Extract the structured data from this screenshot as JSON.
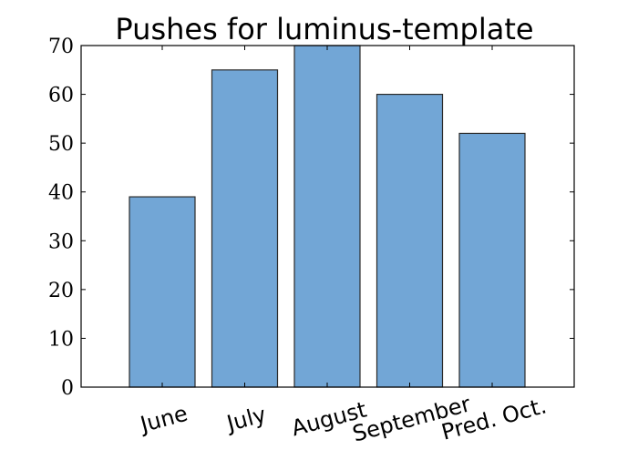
{
  "chart_data": {
    "type": "bar",
    "title": "Pushes for luminus-template",
    "xlabel": "",
    "ylabel": "",
    "categories": [
      "June",
      "July",
      "August",
      "September",
      "Pred. Oct."
    ],
    "values": [
      39,
      65,
      70,
      60,
      52
    ],
    "ylim": [
      0,
      70
    ],
    "yticks": [
      0,
      10,
      20,
      30,
      40,
      50,
      60,
      70
    ],
    "bar_color": "#72a6d6",
    "edge_color": "#2b2b2b",
    "grid": false,
    "legend": "none"
  }
}
